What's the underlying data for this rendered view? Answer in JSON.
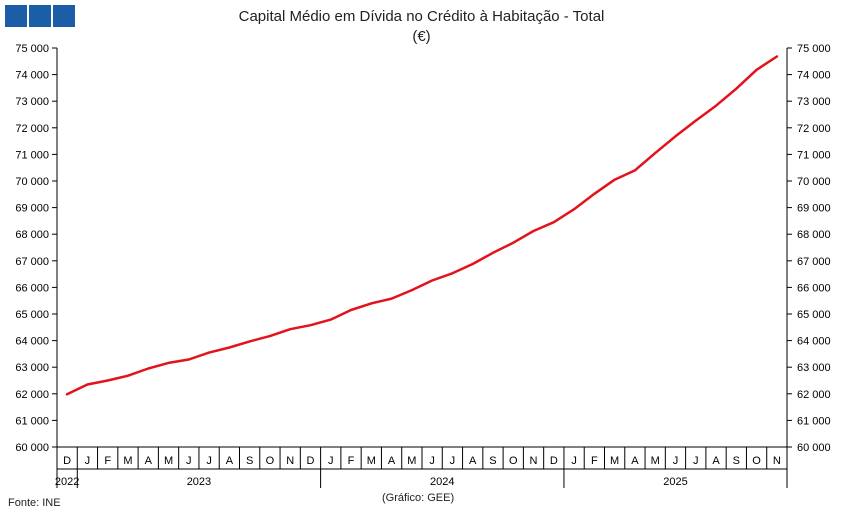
{
  "logo": {
    "color": "#1a5ea8"
  },
  "title": {
    "line1": "Capital Médio em Dívida no Crédito à Habitação - Total",
    "line2": "(€)"
  },
  "footer": {
    "source": "Fonte: INE",
    "credit": "(Gráfico: GEE)"
  },
  "chart_data": {
    "type": "line",
    "title": "Capital Médio em Dívida no Crédito à Habitação - Total",
    "subtitle": "(€)",
    "ylim": [
      60000,
      75000
    ],
    "y_ticks": [
      60000,
      61000,
      62000,
      63000,
      64000,
      65000,
      66000,
      67000,
      68000,
      69000,
      70000,
      71000,
      72000,
      73000,
      74000,
      75000
    ],
    "y_tick_labels": [
      "60 000",
      "61 000",
      "62 000",
      "63 000",
      "64 000",
      "65 000",
      "66 000",
      "67 000",
      "68 000",
      "69 000",
      "70 000",
      "71 000",
      "72 000",
      "73 000",
      "74 000",
      "75 000"
    ],
    "y_axes": "left and right",
    "grid": false,
    "month_labels": [
      "D",
      "J",
      "F",
      "M",
      "A",
      "M",
      "J",
      "J",
      "A",
      "S",
      "O",
      "N",
      "D",
      "J",
      "F",
      "M",
      "A",
      "M",
      "J",
      "J",
      "A",
      "S",
      "O",
      "N",
      "D",
      "J",
      "F",
      "M",
      "A",
      "M",
      "J",
      "J",
      "A",
      "S",
      "O",
      "N"
    ],
    "year_labels": [
      "2022",
      "2023",
      "2024",
      "2025"
    ],
    "year_spans": [
      [
        0,
        1
      ],
      [
        1,
        13
      ],
      [
        13,
        25
      ],
      [
        25,
        36
      ]
    ],
    "series": [
      {
        "color": "#e3121b",
        "values": [
          61980,
          62350,
          62500,
          62680,
          62950,
          63160,
          63290,
          63550,
          63740,
          63970,
          64170,
          64430,
          64580,
          64790,
          65150,
          65400,
          65580,
          65900,
          66260,
          66530,
          66880,
          67300,
          67680,
          68120,
          68450,
          68940,
          69520,
          70050,
          70400,
          71050,
          71680,
          72270,
          72830,
          73470,
          74180,
          74680
        ]
      }
    ]
  }
}
